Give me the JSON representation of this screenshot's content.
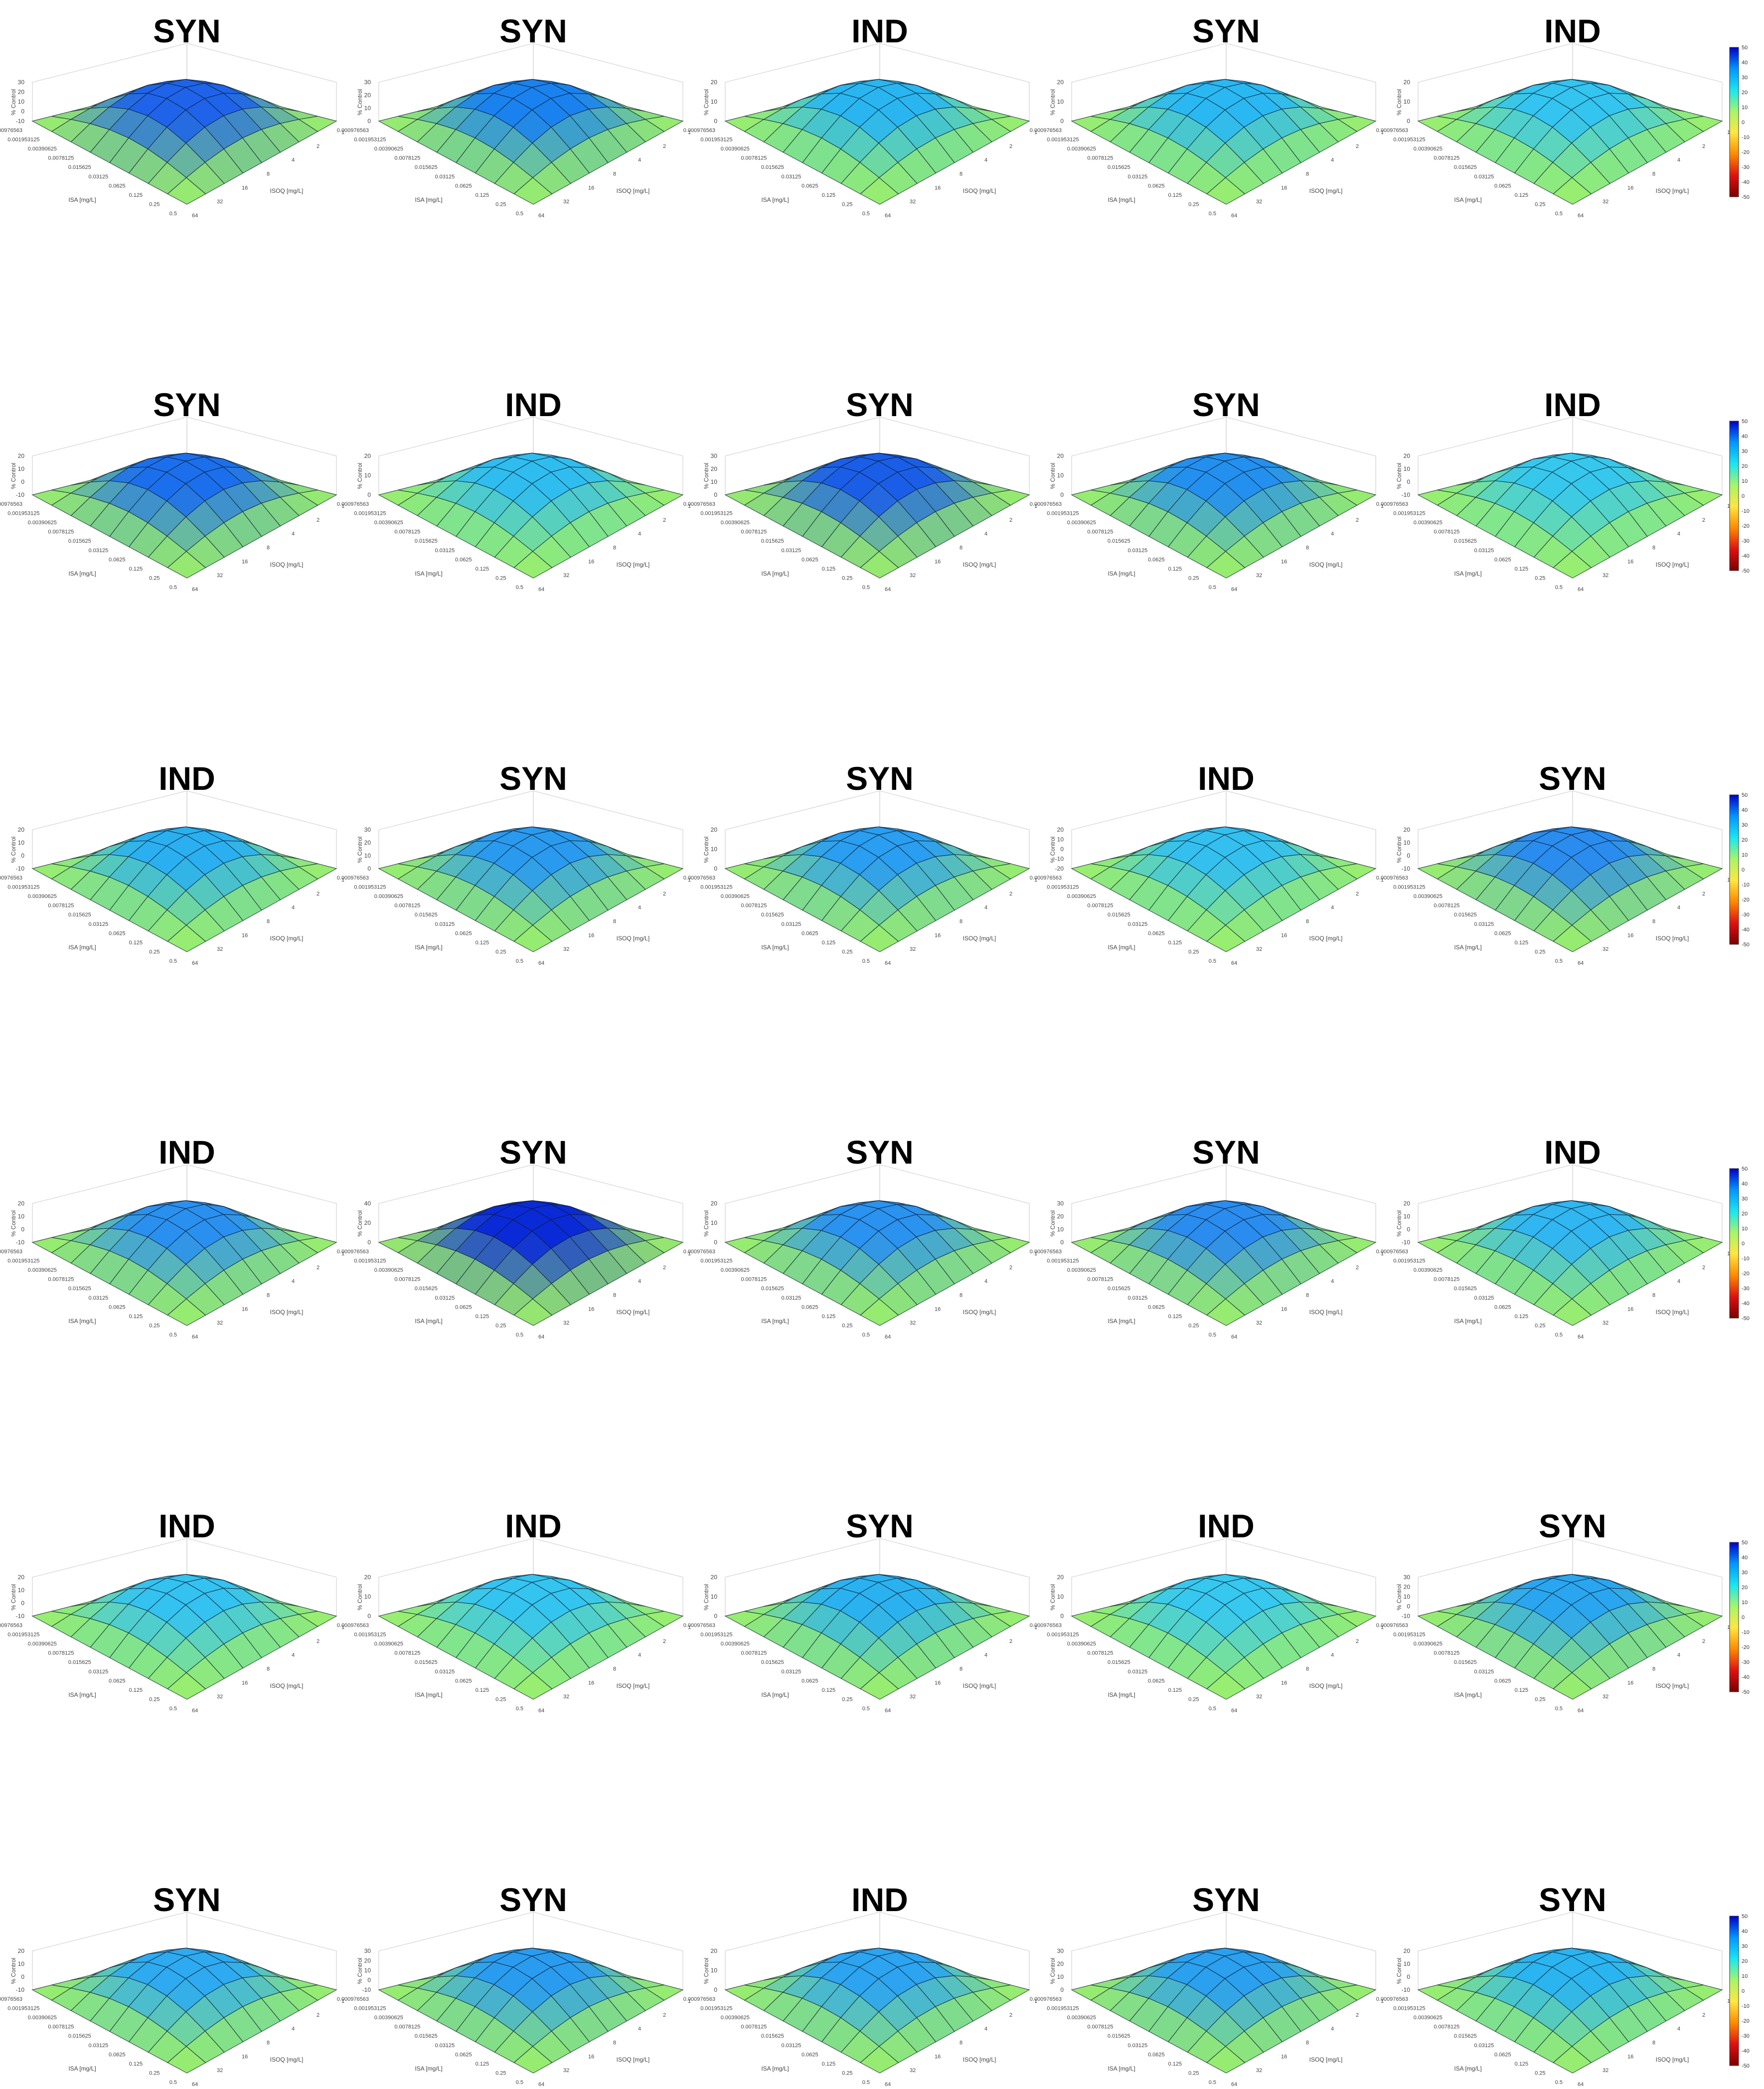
{
  "figure": {
    "z_axis_label": "% Control",
    "isa_axis_label": "ISA [mg/L]",
    "isoq_axis_label": "ISOQ [mg/L]",
    "isa_ticks": [
      "0.000976563",
      "0.001953125",
      "0.00390625",
      "0.0078125",
      "0.015625",
      "0.03125",
      "0.0625",
      "0.125",
      "0.25",
      "0.5"
    ],
    "isoq_ticks": [
      "64",
      "32",
      "16",
      "8",
      "4",
      "2",
      "1"
    ],
    "colorbar_ticks": [
      "50",
      "40",
      "30",
      "20",
      "10",
      "0",
      "-10",
      "-20",
      "-30",
      "-40",
      "-50"
    ],
    "colorbar_range": [
      -50,
      50
    ],
    "colormap": [
      "#7a0000",
      "#e01010",
      "#ff8a00",
      "#ffe640",
      "#a6f56b",
      "#19e6f0",
      "#0096ff",
      "#0000c8"
    ]
  },
  "chart_data": [
    {
      "type": "surface",
      "title": "SYN",
      "z_ticks": [
        "30",
        "20",
        "10",
        "0",
        "-10"
      ],
      "zlim": [
        -10,
        30
      ],
      "surface_color": "#1e63ea"
    },
    {
      "type": "surface",
      "title": "SYN",
      "z_ticks": [
        "30",
        "20",
        "10",
        "0"
      ],
      "zlim": [
        0,
        30
      ],
      "surface_color": "#1a82ef"
    },
    {
      "type": "surface",
      "title": "IND",
      "z_ticks": [
        "20",
        "10",
        "0"
      ],
      "zlim": [
        0,
        20
      ],
      "surface_color": "#29b6f0"
    },
    {
      "type": "surface",
      "title": "SYN",
      "z_ticks": [
        "20",
        "10",
        "0"
      ],
      "zlim": [
        0,
        20
      ],
      "surface_color": "#2ab8f2"
    },
    {
      "type": "surface",
      "title": "IND",
      "z_ticks": [
        "20",
        "10",
        "0"
      ],
      "zlim": [
        0,
        20
      ],
      "surface_color": "#33c4f0"
    },
    {
      "type": "surface",
      "title": "SYN",
      "z_ticks": [
        "20",
        "10",
        "0",
        "-10"
      ],
      "zlim": [
        -10,
        20
      ],
      "surface_color": "#1c6fec"
    },
    {
      "type": "surface",
      "title": "IND",
      "z_ticks": [
        "20",
        "10",
        "0"
      ],
      "zlim": [
        0,
        20
      ],
      "surface_color": "#2fbdf0"
    },
    {
      "type": "surface",
      "title": "SYN",
      "z_ticks": [
        "30",
        "20",
        "10",
        "0"
      ],
      "zlim": [
        0,
        30
      ],
      "surface_color": "#1a5ee8"
    },
    {
      "type": "surface",
      "title": "SYN",
      "z_ticks": [
        "20",
        "10",
        "0"
      ],
      "zlim": [
        0,
        20
      ],
      "surface_color": "#2390ef"
    },
    {
      "type": "surface",
      "title": "IND",
      "z_ticks": [
        "20",
        "10",
        "0",
        "-10"
      ],
      "zlim": [
        -10,
        20
      ],
      "surface_color": "#36c8ec"
    },
    {
      "type": "surface",
      "title": "IND",
      "z_ticks": [
        "20",
        "10",
        "0",
        "-10"
      ],
      "zlim": [
        -10,
        20
      ],
      "surface_color": "#2ab0f0"
    },
    {
      "type": "surface",
      "title": "SYN",
      "z_ticks": [
        "30",
        "20",
        "10",
        "0"
      ],
      "zlim": [
        0,
        30
      ],
      "surface_color": "#2a9aef"
    },
    {
      "type": "surface",
      "title": "SYN",
      "z_ticks": [
        "20",
        "10",
        "0"
      ],
      "zlim": [
        0,
        20
      ],
      "surface_color": "#2a9ef0"
    },
    {
      "type": "surface",
      "title": "IND",
      "z_ticks": [
        "20",
        "10",
        "0",
        "-10",
        "-20"
      ],
      "zlim": [
        -20,
        20
      ],
      "surface_color": "#33c0ee"
    },
    {
      "type": "surface",
      "title": "SYN",
      "z_ticks": [
        "20",
        "10",
        "0",
        "-10"
      ],
      "zlim": [
        -10,
        20
      ],
      "surface_color": "#2a8cee"
    },
    {
      "type": "surface",
      "title": "IND",
      "z_ticks": [
        "20",
        "10",
        "0",
        "-10"
      ],
      "zlim": [
        -10,
        20
      ],
      "surface_color": "#2a90ef"
    },
    {
      "type": "surface",
      "title": "SYN",
      "z_ticks": [
        "40",
        "20",
        "0"
      ],
      "zlim": [
        0,
        40
      ],
      "surface_color": "#0a2ad8"
    },
    {
      "type": "surface",
      "title": "SYN",
      "z_ticks": [
        "20",
        "10",
        "0"
      ],
      "zlim": [
        0,
        20
      ],
      "surface_color": "#2a92ef"
    },
    {
      "type": "surface",
      "title": "SYN",
      "z_ticks": [
        "30",
        "20",
        "10",
        "0"
      ],
      "zlim": [
        0,
        30
      ],
      "surface_color": "#2a8cef"
    },
    {
      "type": "surface",
      "title": "IND",
      "z_ticks": [
        "20",
        "10",
        "0",
        "-10"
      ],
      "zlim": [
        -10,
        20
      ],
      "surface_color": "#30b6f0"
    },
    {
      "type": "surface",
      "title": "IND",
      "z_ticks": [
        "20",
        "10",
        "0",
        "-10"
      ],
      "zlim": [
        -10,
        20
      ],
      "surface_color": "#34c2f0"
    },
    {
      "type": "surface",
      "title": "IND",
      "z_ticks": [
        "20",
        "10",
        "0"
      ],
      "zlim": [
        0,
        20
      ],
      "surface_color": "#34c4f0"
    },
    {
      "type": "surface",
      "title": "SYN",
      "z_ticks": [
        "20",
        "10",
        "0"
      ],
      "zlim": [
        0,
        20
      ],
      "surface_color": "#2ab2f0"
    },
    {
      "type": "surface",
      "title": "IND",
      "z_ticks": [
        "20",
        "10",
        "0"
      ],
      "zlim": [
        0,
        20
      ],
      "surface_color": "#36c8ef"
    },
    {
      "type": "surface",
      "title": "SYN",
      "z_ticks": [
        "30",
        "20",
        "10",
        "0",
        "-10"
      ],
      "zlim": [
        -10,
        30
      ],
      "surface_color": "#2aa6f0"
    },
    {
      "type": "surface",
      "title": "SYN",
      "z_ticks": [
        "20",
        "10",
        "0",
        "-10"
      ],
      "zlim": [
        -10,
        20
      ],
      "surface_color": "#2eaaf0"
    },
    {
      "type": "surface",
      "title": "SYN",
      "z_ticks": [
        "30",
        "20",
        "10",
        "0",
        "-10"
      ],
      "zlim": [
        -10,
        30
      ],
      "surface_color": "#2a9cef"
    },
    {
      "type": "surface",
      "title": "IND",
      "z_ticks": [
        "20",
        "10",
        "0"
      ],
      "zlim": [
        0,
        20
      ],
      "surface_color": "#2ca4f0"
    },
    {
      "type": "surface",
      "title": "SYN",
      "z_ticks": [
        "30",
        "20",
        "10",
        "0"
      ],
      "zlim": [
        0,
        30
      ],
      "surface_color": "#2aa0ef"
    },
    {
      "type": "surface",
      "title": "SYN",
      "z_ticks": [
        "20",
        "10",
        "0",
        "-10"
      ],
      "zlim": [
        -10,
        20
      ],
      "surface_color": "#2ab4f0"
    }
  ]
}
